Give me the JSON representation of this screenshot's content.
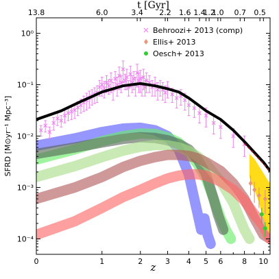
{
  "chart_data": {
    "type": "line",
    "xlabel": "z",
    "x2label": "t [Gyr]",
    "ylabel": "SFRD [M⊙yr⁻¹ Mpc⁻³]",
    "xscale": "log(1+z)",
    "yscale": "log",
    "xlim": [
      0,
      10.8
    ],
    "ylim": [
      5e-05,
      2
    ],
    "xticks": [
      {
        "z": 0,
        "label": "0"
      },
      {
        "z": 1,
        "label": "1"
      },
      {
        "z": 2,
        "label": "2"
      },
      {
        "z": 3,
        "label": "3"
      },
      {
        "z": 4,
        "label": "4"
      },
      {
        "z": 5,
        "label": "5"
      },
      {
        "z": 6,
        "label": "6"
      },
      {
        "z": 8,
        "label": "8"
      },
      {
        "z": 10,
        "label": "10"
      }
    ],
    "top_ticks": [
      {
        "z": 0,
        "label": "13.8"
      },
      {
        "z": 1.0,
        "label": "6.0"
      },
      {
        "z": 1.9,
        "label": "3.4"
      },
      {
        "z": 2.9,
        "label": "2.2"
      },
      {
        "z": 3.8,
        "label": "1.6"
      },
      {
        "z": 4.6,
        "label": "1.4"
      },
      {
        "z": 5.2,
        "label": "1.2"
      },
      {
        "z": 5.8,
        "label": "1.0"
      },
      {
        "z": 7.6,
        "label": "0.7"
      },
      {
        "z": 9.6,
        "label": "0.5"
      }
    ],
    "yticks": [
      {
        "v": 0.0001,
        "label": "10⁻⁴"
      },
      {
        "v": 0.001,
        "label": "10⁻³"
      },
      {
        "v": 0.01,
        "label": "10⁻²"
      },
      {
        "v": 0.1,
        "label": "10⁻¹"
      },
      {
        "v": 1,
        "label": "10⁰"
      }
    ],
    "legend_position": "top-right",
    "legend": [
      {
        "label": "Behroozi+ 2013 (comp)",
        "marker": "x",
        "color": "#ee82ee"
      },
      {
        "label": "Ellis+ 2013",
        "marker": "diamond",
        "color": "#e9967a"
      },
      {
        "label": "Oesch+ 2013",
        "marker": "circle",
        "color": "#33cc33"
      }
    ],
    "total_line": {
      "color": "#000000",
      "points": [
        [
          0,
          0.021
        ],
        [
          0.3,
          0.031
        ],
        [
          0.6,
          0.047
        ],
        [
          1.0,
          0.072
        ],
        [
          1.5,
          0.095
        ],
        [
          2.0,
          0.105
        ],
        [
          2.5,
          0.095
        ],
        [
          3.0,
          0.083
        ],
        [
          3.5,
          0.072
        ],
        [
          4.0,
          0.055
        ],
        [
          4.5,
          0.041
        ],
        [
          5.0,
          0.031
        ],
        [
          6.0,
          0.021
        ],
        [
          7.0,
          0.013
        ],
        [
          8.0,
          0.0078
        ],
        [
          9.0,
          0.0048
        ],
        [
          10.0,
          0.0031
        ],
        [
          10.8,
          0.0021
        ]
      ]
    },
    "model_bands": [
      {
        "color": "#5555ff",
        "points": [
          [
            0,
            0.0065
          ],
          [
            0.5,
            0.009
          ],
          [
            1.0,
            0.012
          ],
          [
            1.5,
            0.014
          ],
          [
            2.0,
            0.0145
          ],
          [
            2.5,
            0.013
          ],
          [
            3.0,
            0.01
          ],
          [
            3.5,
            0.0055
          ],
          [
            4.0,
            0.0018
          ],
          [
            4.3,
            0.0006
          ],
          [
            4.5,
            0.0003
          ],
          [
            4.7,
            0.00015
          ],
          [
            4.9,
            0.00025
          ],
          [
            5.1,
            0.00012
          ],
          [
            5.3,
            8e-05
          ]
        ]
      },
      {
        "color": "#66ee66",
        "points": [
          [
            0,
            0.0035
          ],
          [
            0.5,
            0.0055
          ],
          [
            1.0,
            0.008
          ],
          [
            1.5,
            0.01
          ],
          [
            2.0,
            0.0112
          ],
          [
            2.5,
            0.011
          ],
          [
            3.0,
            0.0095
          ],
          [
            3.5,
            0.0075
          ],
          [
            4.0,
            0.0048
          ],
          [
            4.5,
            0.0028
          ],
          [
            5.0,
            0.0015
          ],
          [
            5.5,
            0.0006
          ],
          [
            6.0,
            0.00025
          ],
          [
            6.4,
            0.00015
          ],
          [
            6.8,
            0.0001
          ]
        ]
      },
      {
        "color": "#556655",
        "points": [
          [
            0,
            0.0045
          ],
          [
            0.5,
            0.006
          ],
          [
            1.0,
            0.0075
          ],
          [
            1.5,
            0.0088
          ],
          [
            2.0,
            0.0095
          ],
          [
            2.5,
            0.0092
          ],
          [
            3.0,
            0.0083
          ],
          [
            3.5,
            0.007
          ],
          [
            4.0,
            0.0055
          ],
          [
            4.5,
            0.0035
          ],
          [
            5.0,
            0.0018
          ],
          [
            5.5,
            0.0006
          ],
          [
            5.8,
            0.0003
          ],
          [
            6.2,
            0.00015
          ]
        ]
      },
      {
        "color": "#aadd88",
        "points": [
          [
            0,
            0.0016
          ],
          [
            0.5,
            0.0026
          ],
          [
            1.0,
            0.0039
          ],
          [
            1.5,
            0.0052
          ],
          [
            2.0,
            0.0062
          ],
          [
            2.5,
            0.0067
          ],
          [
            3.0,
            0.0066
          ],
          [
            3.5,
            0.006
          ],
          [
            4.0,
            0.0051
          ],
          [
            4.5,
            0.004
          ],
          [
            5.0,
            0.0029
          ],
          [
            6.0,
            0.0013
          ],
          [
            7.0,
            0.0005
          ],
          [
            8.0,
            0.00015
          ],
          [
            8.5,
            0.0001
          ]
        ]
      },
      {
        "color": "#b35a5a",
        "points": [
          [
            0,
            0.0006
          ],
          [
            0.5,
            0.001
          ],
          [
            1.0,
            0.0016
          ],
          [
            1.5,
            0.0025
          ],
          [
            2.0,
            0.0033
          ],
          [
            2.5,
            0.0039
          ],
          [
            3.0,
            0.0043
          ],
          [
            3.5,
            0.0043
          ],
          [
            4.0,
            0.0041
          ],
          [
            4.5,
            0.0037
          ],
          [
            5.0,
            0.0031
          ],
          [
            6.0,
            0.0021
          ],
          [
            7.0,
            0.0012
          ],
          [
            8.0,
            0.0006
          ],
          [
            9.0,
            0.00025
          ],
          [
            10.0,
            0.00012
          ],
          [
            10.8,
            0.0001
          ]
        ]
      },
      {
        "color": "#ff6666",
        "points": [
          [
            0,
            0.00012
          ],
          [
            0.5,
            0.00022
          ],
          [
            1.0,
            0.0004
          ],
          [
            1.5,
            0.00065
          ],
          [
            2.0,
            0.0009
          ],
          [
            2.5,
            0.0012
          ],
          [
            3.0,
            0.0015
          ],
          [
            3.5,
            0.0017
          ],
          [
            4.0,
            0.0018
          ],
          [
            4.5,
            0.0018
          ],
          [
            5.0,
            0.0017
          ],
          [
            6.0,
            0.0013
          ],
          [
            7.0,
            0.0009
          ],
          [
            8.0,
            0.00055
          ],
          [
            9.0,
            0.0003
          ],
          [
            10.0,
            0.00018
          ],
          [
            10.8,
            0.0001
          ]
        ]
      }
    ],
    "behroozi_points": [
      [
        0.05,
        0.013,
        0.003
      ],
      [
        0.1,
        0.016,
        0.004
      ],
      [
        0.15,
        0.012,
        0.003
      ],
      [
        0.2,
        0.018,
        0.005
      ],
      [
        0.25,
        0.022,
        0.006
      ],
      [
        0.3,
        0.02,
        0.005
      ],
      [
        0.35,
        0.025,
        0.007
      ],
      [
        0.4,
        0.028,
        0.008
      ],
      [
        0.45,
        0.03,
        0.009
      ],
      [
        0.5,
        0.032,
        0.01
      ],
      [
        0.55,
        0.036,
        0.011
      ],
      [
        0.6,
        0.04,
        0.012
      ],
      [
        0.65,
        0.045,
        0.015
      ],
      [
        0.7,
        0.05,
        0.018
      ],
      [
        0.75,
        0.055,
        0.02
      ],
      [
        0.8,
        0.06,
        0.02
      ],
      [
        0.85,
        0.065,
        0.022
      ],
      [
        0.9,
        0.07,
        0.025
      ],
      [
        0.95,
        0.09,
        0.03
      ],
      [
        1.0,
        0.1,
        0.04
      ],
      [
        1.05,
        0.085,
        0.03
      ],
      [
        1.1,
        0.11,
        0.04
      ],
      [
        1.15,
        0.095,
        0.03
      ],
      [
        1.2,
        0.12,
        0.05
      ],
      [
        1.25,
        0.08,
        0.03
      ],
      [
        1.3,
        0.13,
        0.05
      ],
      [
        1.35,
        0.1,
        0.04
      ],
      [
        1.4,
        0.15,
        0.07
      ],
      [
        1.45,
        0.11,
        0.04
      ],
      [
        1.5,
        0.2,
        0.09
      ],
      [
        1.55,
        0.12,
        0.04
      ],
      [
        1.6,
        0.14,
        0.06
      ],
      [
        1.65,
        0.09,
        0.03
      ],
      [
        1.7,
        0.16,
        0.07
      ],
      [
        1.75,
        0.11,
        0.04
      ],
      [
        1.8,
        0.13,
        0.05
      ],
      [
        1.85,
        0.1,
        0.04
      ],
      [
        1.9,
        0.17,
        0.08
      ],
      [
        1.95,
        0.12,
        0.05
      ],
      [
        2.0,
        0.13,
        0.06
      ],
      [
        2.05,
        0.1,
        0.04
      ],
      [
        2.1,
        0.14,
        0.06
      ],
      [
        2.15,
        0.09,
        0.03
      ],
      [
        2.2,
        0.12,
        0.05
      ],
      [
        2.3,
        0.11,
        0.04
      ],
      [
        2.4,
        0.09,
        0.03
      ],
      [
        2.5,
        0.1,
        0.04
      ],
      [
        2.6,
        0.08,
        0.03
      ],
      [
        2.7,
        0.09,
        0.03
      ],
      [
        2.8,
        0.08,
        0.03
      ],
      [
        2.9,
        0.07,
        0.025
      ],
      [
        3.0,
        0.085,
        0.03
      ],
      [
        3.2,
        0.065,
        0.02
      ],
      [
        3.4,
        0.055,
        0.02
      ],
      [
        3.6,
        0.06,
        0.02
      ],
      [
        3.8,
        0.05,
        0.018
      ],
      [
        4.0,
        0.04,
        0.015
      ],
      [
        4.3,
        0.035,
        0.012
      ],
      [
        4.6,
        0.028,
        0.01
      ],
      [
        5.0,
        0.025,
        0.01
      ],
      [
        5.5,
        0.018,
        0.007
      ],
      [
        6.0,
        0.015,
        0.006
      ],
      [
        7.0,
        0.01,
        0.004
      ],
      [
        8.0,
        0.007,
        0.003
      ]
    ],
    "ellis_points": [
      [
        8.6,
        0.0012,
        0.0005
      ],
      [
        9.0,
        0.0009,
        0.0004
      ],
      [
        9.5,
        0.0007,
        0.0003
      ],
      [
        10.2,
        0.0006,
        0.0003
      ]
    ],
    "oesch_points": [
      [
        9.8,
        0.0003,
        0.0001
      ],
      [
        10.2,
        0.00016,
        5e-05
      ]
    ],
    "fit_dashed": {
      "color": "#8b1a1a",
      "points": [
        [
          8.0,
          0.0072
        ],
        [
          9.0,
          0.0045
        ],
        [
          10.0,
          0.0029
        ],
        [
          10.8,
          0.002
        ]
      ]
    },
    "yellow_band": {
      "color": "#ffd700",
      "upper": [
        [
          8.5,
          0.0045
        ],
        [
          9.0,
          0.0036
        ],
        [
          9.5,
          0.0026
        ],
        [
          10.0,
          0.0019
        ],
        [
          10.5,
          0.0014
        ],
        [
          10.8,
          0.0012
        ]
      ],
      "lower": [
        [
          8.5,
          0.0016
        ],
        [
          9.0,
          0.0009
        ],
        [
          9.5,
          0.0005
        ],
        [
          10.0,
          0.00025
        ],
        [
          10.5,
          0.00015
        ],
        [
          10.8,
          0.00012
        ]
      ]
    }
  }
}
